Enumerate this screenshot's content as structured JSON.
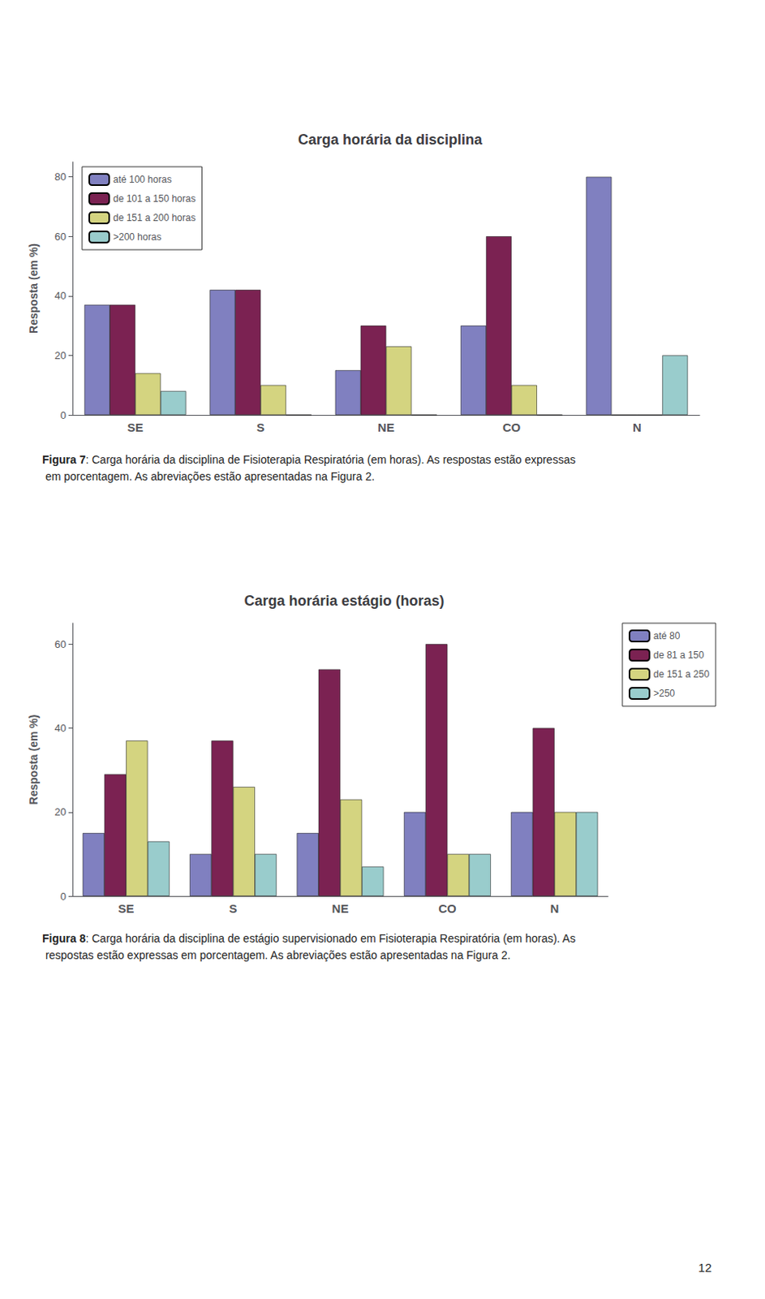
{
  "chart_data": [
    {
      "type": "bar",
      "title": "Carga horária da disciplina",
      "categories": [
        "SE",
        "S",
        "NE",
        "CO",
        "N"
      ],
      "series": [
        {
          "name": "até 100 horas",
          "color": "#8080c0",
          "values": [
            37,
            42,
            15,
            30,
            80
          ]
        },
        {
          "name": "de 101 a 150 horas",
          "color": "#7b2252",
          "values": [
            37,
            42,
            30,
            60,
            0
          ]
        },
        {
          "name": "de 151 a 200 horas",
          "color": "#d4d480",
          "values": [
            14,
            10,
            23,
            10,
            0
          ]
        },
        {
          "name": ">200 horas",
          "color": "#99cccc",
          "values": [
            8,
            0,
            0,
            0,
            20
          ]
        }
      ],
      "ylabel": "Resposta (em %)",
      "ylim": [
        0,
        85
      ],
      "yticks": [
        0,
        20,
        40,
        60,
        80
      ],
      "grid": false,
      "legend": "upper left",
      "annotations": [
        "Figura 7",
        ": Carga horária da disciplina de Fisioterapia Respiratória (em horas). As respostas estão expressas em porcentagem. As abreviações estão apresentadas na Figura 2."
      ]
    },
    {
      "type": "bar",
      "title": "Carga horária estágio (horas)",
      "categories": [
        "SE",
        "S",
        "NE",
        "CO",
        "N"
      ],
      "series": [
        {
          "name": "até 80",
          "color": "#8080c0",
          "values": [
            15,
            10,
            15,
            20,
            20
          ]
        },
        {
          "name": "de 81 a 150",
          "color": "#7b2252",
          "values": [
            29,
            37,
            54,
            60,
            40
          ]
        },
        {
          "name": "de 151 a 250",
          "color": "#d4d480",
          "values": [
            37,
            26,
            23,
            10,
            20
          ]
        },
        {
          "name": ">250",
          "color": "#99cccc",
          "values": [
            13,
            10,
            7,
            10,
            20
          ]
        }
      ],
      "ylabel": "Resposta (em %)",
      "ylim": [
        0,
        65
      ],
      "yticks": [
        0,
        20,
        40,
        60
      ],
      "grid": false,
      "legend": "right",
      "annotations": [
        "Figura 8",
        ": Carga horária da disciplina de estágio supervisionado em Fisioterapia Respiratória (em horas). As respostas estão expressas em porcentagem. As abreviações estão apresentadas na Figura 2."
      ]
    }
  ],
  "annotations": [
    "12"
  ]
}
